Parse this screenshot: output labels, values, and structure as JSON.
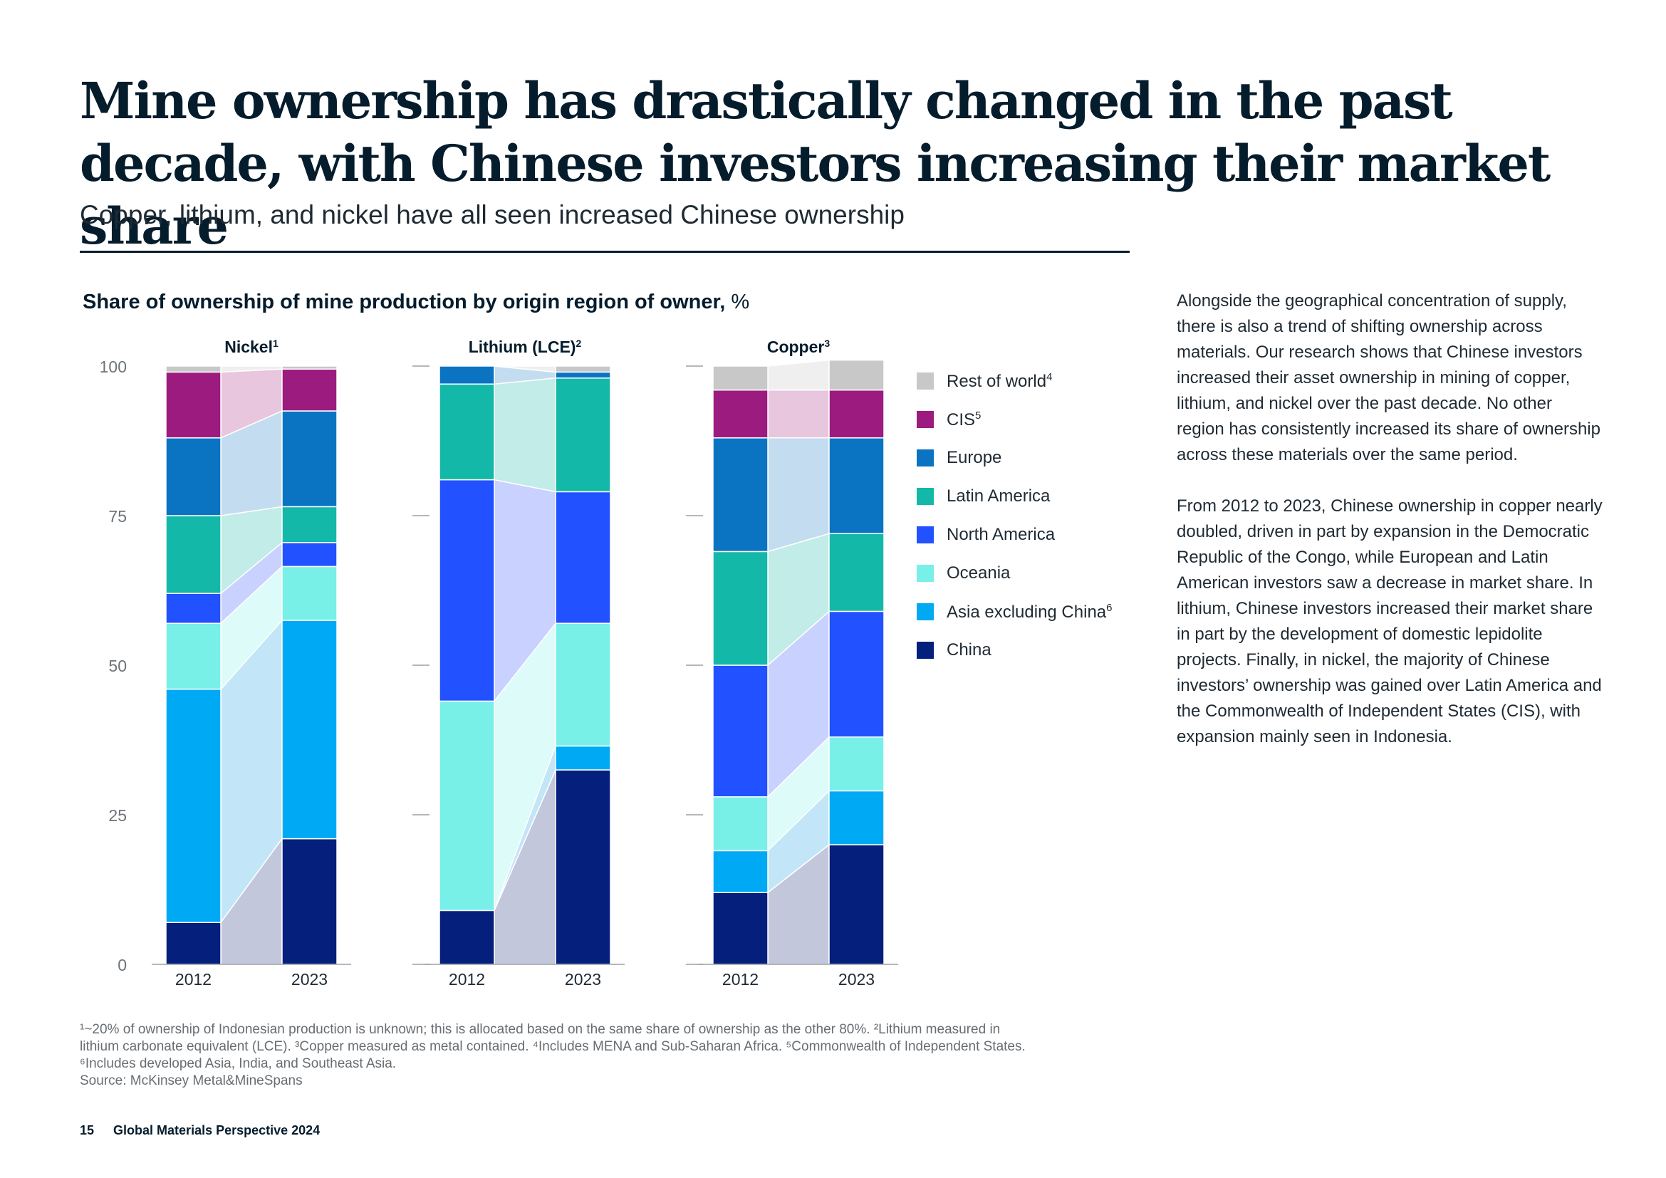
{
  "title": "Mine ownership has drastically changed in the past decade, with Chinese investors increasing their market share",
  "subtitle": "Copper, lithium, and nickel have all seen increased Chinese ownership",
  "chart_title": "Share of ownership of mine production by origin region of owner,",
  "chart_unit": "%",
  "chart_data": {
    "type": "bar",
    "stacked": true,
    "ylim": [
      0,
      100
    ],
    "yticks": [
      0,
      25,
      50,
      75,
      100
    ],
    "grid": false,
    "legend_position": "right",
    "series_order": [
      "China",
      "Asia excluding China",
      "Oceania",
      "North America",
      "Latin America",
      "Europe",
      "CIS",
      "Rest of world"
    ],
    "colors": {
      "China": "#051f7c",
      "Asia excluding China": "#00a9f4",
      "Oceania": "#78f0e8",
      "North America": "#2251ff",
      "Latin America": "#14b8a8",
      "Europe": "#0a74c2",
      "CIS": "#9b1c7e",
      "Rest of world": "#c8c8c8"
    },
    "band_colors": {
      "China": "#c3c7dc",
      "Asia excluding China": "#c2e6f7",
      "Oceania": "#dcfbf9",
      "North America": "#c9d1ff",
      "Latin America": "#c1ece7",
      "Europe": "#c3dcef",
      "CIS": "#e8c6de",
      "Rest of world": "#efefef"
    },
    "panels": [
      {
        "name": "Nickel",
        "sup": "1",
        "categories": [
          "2012",
          "2023"
        ],
        "values": {
          "2012": [
            7,
            39,
            11,
            5,
            13,
            13,
            11,
            1
          ],
          "2023": [
            21,
            36.5,
            9,
            4,
            6,
            16,
            7,
            0.5
          ]
        }
      },
      {
        "name": "Lithium (LCE)",
        "sup": "2",
        "categories": [
          "2012",
          "2023"
        ],
        "values": {
          "2012": [
            9,
            0,
            35,
            37,
            16,
            3,
            0,
            0
          ],
          "2023": [
            32.5,
            4,
            20.5,
            22,
            19,
            1,
            0,
            1
          ]
        }
      },
      {
        "name": "Copper",
        "sup": "3",
        "categories": [
          "2012",
          "2023"
        ],
        "values": {
          "2012": [
            12,
            7,
            9,
            22,
            19,
            19,
            8,
            4
          ],
          "2023": [
            20,
            9,
            9,
            21,
            13,
            16,
            8,
            5
          ]
        }
      }
    ]
  },
  "legend": [
    {
      "label": "Rest of world",
      "sup": "4",
      "color": "#c8c8c8"
    },
    {
      "label": "CIS",
      "sup": "5",
      "color": "#9b1c7e"
    },
    {
      "label": "Europe",
      "sup": "",
      "color": "#0a74c2"
    },
    {
      "label": "Latin America",
      "sup": "",
      "color": "#14b8a8"
    },
    {
      "label": "North America",
      "sup": "",
      "color": "#2251ff"
    },
    {
      "label": "Oceania",
      "sup": "",
      "color": "#78f0e8"
    },
    {
      "label": "Asia excluding China",
      "sup": "6",
      "color": "#00a9f4"
    },
    {
      "label": "China",
      "sup": "",
      "color": "#051f7c"
    }
  ],
  "body": {
    "p1": "Alongside the geographical concentration of supply, there is also a trend of shifting ownership across materials. Our research shows that Chinese investors increased their asset ownership in mining of copper, lithium, and nickel over the past decade. No other region has consistently increased its share of ownership across these materials over the same period.",
    "p2": "From 2012 to 2023, Chinese ownership in copper nearly doubled, driven in part by expansion in the Democratic Republic of the Congo, while European and Latin American investors saw a decrease in market share. In lithium, Chinese investors increased their market share in part by the development of domestic lepidolite projects. Finally, in nickel, the majority of Chinese investors’ ownership was gained over Latin America and the Commonwealth of Independent States (CIS), with expansion mainly seen in Indonesia."
  },
  "footnotes": {
    "line1": "¹~20% of ownership of Indonesian production is unknown; this is allocated based on the same share of ownership as the other 80%. ²Lithium measured in",
    "line2": " lithium carbonate equivalent (LCE). ³Copper measured as metal contained. ⁴Includes MENA and Sub-Saharan Africa. ⁵Commonwealth of Independent States.",
    "line3": "⁶Includes developed Asia, India, and Southeast Asia.",
    "line4": " Source: McKinsey Metal&MineSpans"
  },
  "footer": {
    "page": "15",
    "publication": "Global Materials Perspective 2024"
  }
}
